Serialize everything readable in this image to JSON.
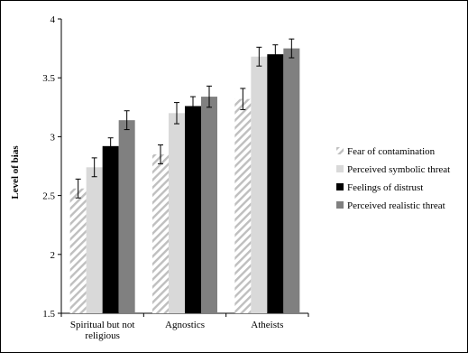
{
  "chart_data": {
    "type": "bar",
    "ylabel": "Level of bias",
    "ylim": [
      1.5,
      4
    ],
    "yticks": [
      "1.5",
      "2",
      "2.5",
      "3",
      "3.5",
      "4"
    ],
    "grid": false,
    "legend_position": "right",
    "categories": [
      [
        "Spiritual but not",
        "religious"
      ],
      [
        "Agnostics"
      ],
      [
        "Atheists"
      ]
    ],
    "series": [
      {
        "name": "Fear of contamination",
        "values": [
          2.56,
          2.85,
          3.32
        ],
        "errors": [
          0.08,
          0.08,
          0.09
        ],
        "fill": "hatch",
        "color": "#bfbfbf"
      },
      {
        "name": "Perceived symbolic threat",
        "values": [
          2.74,
          3.2,
          3.68
        ],
        "errors": [
          0.08,
          0.09,
          0.08
        ],
        "fill": "solid",
        "color": "#d9d9d9"
      },
      {
        "name": "Feelings of distrust",
        "values": [
          2.92,
          3.26,
          3.7
        ],
        "errors": [
          0.07,
          0.08,
          0.08
        ],
        "fill": "solid",
        "color": "#000000"
      },
      {
        "name": "Perceived realistic threat",
        "values": [
          3.14,
          3.34,
          3.75
        ],
        "errors": [
          0.08,
          0.09,
          0.08
        ],
        "fill": "solid",
        "color": "#808080"
      }
    ]
  }
}
